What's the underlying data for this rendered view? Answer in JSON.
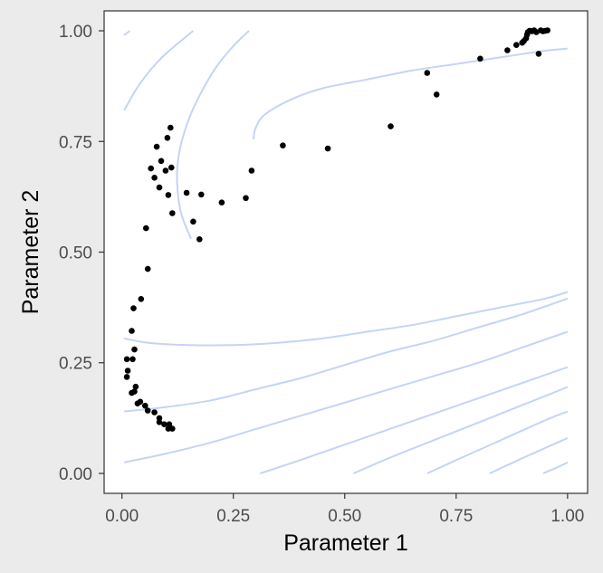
{
  "chart_data": {
    "type": "scatter",
    "title": "",
    "xlabel": "Parameter 1",
    "ylabel": "Parameter 2",
    "xlim": [
      -0.04,
      1.045
    ],
    "ylim": [
      -0.045,
      1.045
    ],
    "x_ticks": [
      0.0,
      0.25,
      0.5,
      0.75,
      1.0
    ],
    "x_tick_labels": [
      "0.00",
      "0.25",
      "0.50",
      "0.75",
      "1.00"
    ],
    "y_ticks": [
      0.0,
      0.25,
      0.5,
      0.75,
      1.0
    ],
    "y_tick_labels": [
      "0.00",
      "0.25",
      "0.50",
      "0.75",
      "1.00"
    ],
    "grid": false,
    "legend": "none",
    "colors": {
      "background": "#ebebeb",
      "panel": "#ffffff",
      "contour": "#c5d4f5",
      "points": "#000000",
      "border": "#333333"
    },
    "contours": [
      [
        [
          0.005,
          0.99
        ],
        [
          0.018,
          1.0
        ]
      ],
      [
        [
          0.005,
          0.82
        ],
        [
          0.04,
          0.88
        ],
        [
          0.09,
          0.94
        ],
        [
          0.16,
          1.0
        ]
      ],
      [
        [
          0.155,
          0.53
        ],
        [
          0.13,
          0.6
        ],
        [
          0.125,
          0.7
        ],
        [
          0.15,
          0.8
        ],
        [
          0.2,
          0.9
        ],
        [
          0.245,
          0.96
        ],
        [
          0.285,
          1.0
        ]
      ],
      [
        [
          0.295,
          0.755
        ],
        [
          0.3,
          0.78
        ],
        [
          0.32,
          0.81
        ],
        [
          0.38,
          0.845
        ],
        [
          0.45,
          0.87
        ],
        [
          0.55,
          0.89
        ],
        [
          0.65,
          0.91
        ],
        [
          0.75,
          0.925
        ],
        [
          0.85,
          0.94
        ],
        [
          0.95,
          0.955
        ],
        [
          1.0,
          0.96
        ]
      ],
      [
        [
          0.005,
          0.305
        ],
        [
          0.06,
          0.295
        ],
        [
          0.15,
          0.29
        ],
        [
          0.25,
          0.29
        ],
        [
          0.35,
          0.295
        ],
        [
          0.45,
          0.305
        ],
        [
          0.55,
          0.32
        ],
        [
          0.65,
          0.335
        ],
        [
          0.75,
          0.355
        ],
        [
          0.85,
          0.375
        ],
        [
          0.95,
          0.395
        ],
        [
          1.0,
          0.41
        ]
      ],
      [
        [
          0.005,
          0.14
        ],
        [
          0.1,
          0.15
        ],
        [
          0.2,
          0.165
        ],
        [
          0.3,
          0.19
        ],
        [
          0.4,
          0.215
        ],
        [
          0.5,
          0.245
        ],
        [
          0.6,
          0.275
        ],
        [
          0.7,
          0.3
        ],
        [
          0.8,
          0.33
        ],
        [
          0.9,
          0.36
        ],
        [
          1.0,
          0.395
        ]
      ],
      [
        [
          0.005,
          0.025
        ],
        [
          0.1,
          0.045
        ],
        [
          0.2,
          0.07
        ],
        [
          0.3,
          0.1
        ],
        [
          0.4,
          0.13
        ],
        [
          0.5,
          0.16
        ],
        [
          0.6,
          0.19
        ],
        [
          0.7,
          0.22
        ],
        [
          0.8,
          0.25
        ],
        [
          0.9,
          0.285
        ],
        [
          1.0,
          0.32
        ]
      ],
      [
        [
          0.31,
          0.0
        ],
        [
          0.4,
          0.03
        ],
        [
          0.5,
          0.065
        ],
        [
          0.6,
          0.1
        ],
        [
          0.7,
          0.135
        ],
        [
          0.8,
          0.17
        ],
        [
          0.9,
          0.205
        ],
        [
          1.0,
          0.24
        ]
      ],
      [
        [
          0.52,
          0.0
        ],
        [
          0.6,
          0.035
        ],
        [
          0.7,
          0.075
        ],
        [
          0.8,
          0.115
        ],
        [
          0.9,
          0.155
        ],
        [
          1.0,
          0.195
        ]
      ],
      [
        [
          0.685,
          0.0
        ],
        [
          0.75,
          0.03
        ],
        [
          0.85,
          0.075
        ],
        [
          0.95,
          0.12
        ],
        [
          1.0,
          0.14
        ]
      ],
      [
        [
          0.825,
          0.0
        ],
        [
          0.9,
          0.035
        ],
        [
          1.0,
          0.08
        ]
      ],
      [
        [
          0.945,
          0.0
        ],
        [
          0.98,
          0.015
        ],
        [
          1.0,
          0.025
        ]
      ]
    ],
    "points": [
      [
        0.011,
        0.218
      ],
      [
        0.013,
        0.232
      ],
      [
        0.011,
        0.258
      ],
      [
        0.024,
        0.258
      ],
      [
        0.028,
        0.28
      ],
      [
        0.022,
        0.322
      ],
      [
        0.026,
        0.373
      ],
      [
        0.043,
        0.394
      ],
      [
        0.058,
        0.462
      ],
      [
        0.054,
        0.554
      ],
      [
        0.022,
        0.182
      ],
      [
        0.028,
        0.185
      ],
      [
        0.031,
        0.196
      ],
      [
        0.035,
        0.158
      ],
      [
        0.041,
        0.162
      ],
      [
        0.052,
        0.153
      ],
      [
        0.058,
        0.142
      ],
      [
        0.073,
        0.138
      ],
      [
        0.084,
        0.125
      ],
      [
        0.084,
        0.116
      ],
      [
        0.095,
        0.111
      ],
      [
        0.106,
        0.111
      ],
      [
        0.104,
        0.101
      ],
      [
        0.113,
        0.101
      ],
      [
        0.065,
        0.689
      ],
      [
        0.073,
        0.668
      ],
      [
        0.078,
        0.738
      ],
      [
        0.084,
        0.646
      ],
      [
        0.088,
        0.706
      ],
      [
        0.098,
        0.684
      ],
      [
        0.104,
        0.629
      ],
      [
        0.102,
        0.758
      ],
      [
        0.109,
        0.781
      ],
      [
        0.111,
        0.691
      ],
      [
        0.113,
        0.588
      ],
      [
        0.145,
        0.634
      ],
      [
        0.16,
        0.569
      ],
      [
        0.174,
        0.529
      ],
      [
        0.178,
        0.63
      ],
      [
        0.224,
        0.612
      ],
      [
        0.278,
        0.622
      ],
      [
        0.291,
        0.684
      ],
      [
        0.361,
        0.741
      ],
      [
        0.462,
        0.734
      ],
      [
        0.603,
        0.784
      ],
      [
        0.685,
        0.905
      ],
      [
        0.706,
        0.856
      ],
      [
        0.804,
        0.937
      ],
      [
        0.865,
        0.956
      ],
      [
        0.885,
        0.968
      ],
      [
        0.898,
        0.973
      ],
      [
        0.902,
        0.977
      ],
      [
        0.907,
        0.983
      ],
      [
        0.909,
        0.991
      ],
      [
        0.911,
        0.997
      ],
      [
        0.915,
        1.0
      ],
      [
        0.92,
        0.999
      ],
      [
        0.925,
        1.001
      ],
      [
        0.93,
        0.997
      ],
      [
        0.935,
        0.948
      ],
      [
        0.94,
        1.001
      ],
      [
        0.945,
        0.999
      ],
      [
        0.95,
        1.0
      ],
      [
        0.955,
        1.001
      ]
    ]
  }
}
